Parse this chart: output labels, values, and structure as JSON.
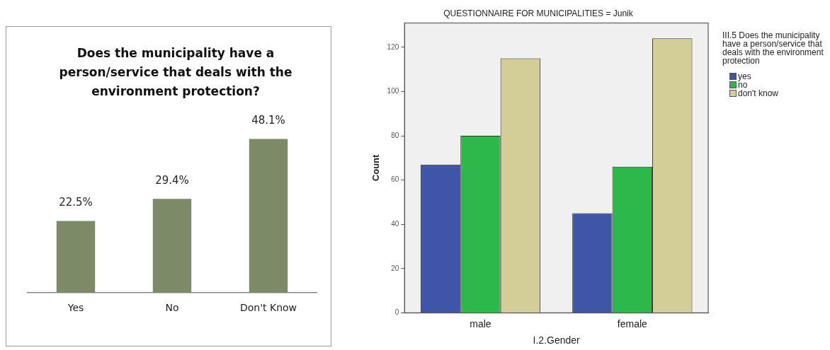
{
  "chart_data": [
    {
      "type": "bar",
      "title": "Does the municipality have a person/service that deals with the environment protection?",
      "categories": [
        "Yes",
        "No",
        "Don't Know"
      ],
      "values": [
        22.5,
        29.4,
        48.1
      ],
      "color": "#7d8a68",
      "value_labels": [
        "22.5%",
        "29.4%",
        "48.1%"
      ],
      "legend": false,
      "grid": false,
      "tick_labels": "x"
    },
    {
      "type": "bar",
      "title": "QUESTIONNAIRE FOR MUNICIPALITIES = Junik",
      "xlabel": "I.2.Gender",
      "ylabel": "Count",
      "legend_title": "III.5 Does the municipality have a person/service that deals with the environment protection",
      "categories": [
        "male",
        "female"
      ],
      "series": [
        {
          "name": "yes",
          "color": "#3f55a8",
          "values": [
            67,
            45
          ]
        },
        {
          "name": "no",
          "color": "#2db84a",
          "values": [
            80,
            66
          ]
        },
        {
          "name": "don't know",
          "color": "#d3cd98",
          "values": [
            115,
            124
          ]
        }
      ],
      "ylim": [
        0,
        131
      ],
      "yticks": [
        0,
        20,
        40,
        60,
        80,
        100,
        120
      ],
      "legend": "top right",
      "grid": false
    }
  ]
}
